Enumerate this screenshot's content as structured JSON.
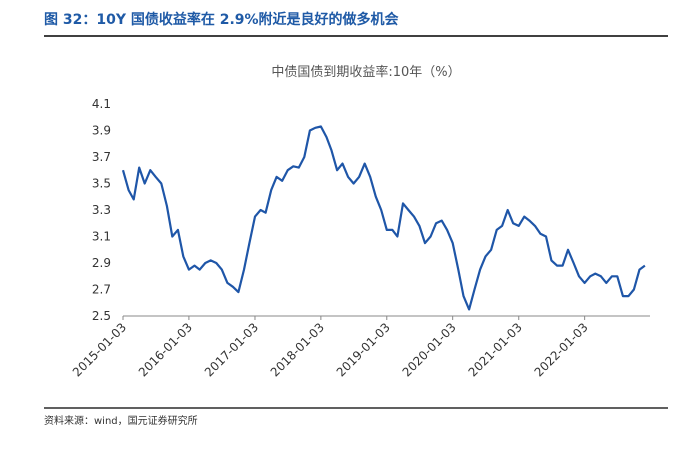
{
  "header": {
    "title": "图 32：10Y 国债收益率在 2.9%附近是良好的做多机会"
  },
  "chart_data": {
    "type": "line",
    "title": "中债国债到期收益率:10年（%）",
    "x": [
      "2015-01-03",
      "2015-02-03",
      "2015-03-03",
      "2015-04-03",
      "2015-05-03",
      "2015-06-03",
      "2015-07-03",
      "2015-08-03",
      "2015-09-03",
      "2015-10-03",
      "2015-11-03",
      "2015-12-03",
      "2016-01-03",
      "2016-02-03",
      "2016-03-03",
      "2016-04-03",
      "2016-05-03",
      "2016-06-03",
      "2016-07-03",
      "2016-08-03",
      "2016-09-03",
      "2016-10-03",
      "2016-11-03",
      "2016-12-03",
      "2017-01-03",
      "2017-02-03",
      "2017-03-03",
      "2017-04-03",
      "2017-05-03",
      "2017-06-03",
      "2017-07-03",
      "2017-08-03",
      "2017-09-03",
      "2017-10-03",
      "2017-11-03",
      "2017-12-03",
      "2018-01-03",
      "2018-02-03",
      "2018-03-03",
      "2018-04-03",
      "2018-05-03",
      "2018-06-03",
      "2018-07-03",
      "2018-08-03",
      "2018-09-03",
      "2018-10-03",
      "2018-11-03",
      "2018-12-03",
      "2019-01-03",
      "2019-02-03",
      "2019-03-03",
      "2019-04-03",
      "2019-05-03",
      "2019-06-03",
      "2019-07-03",
      "2019-08-03",
      "2019-09-03",
      "2019-10-03",
      "2019-11-03",
      "2019-12-03",
      "2020-01-03",
      "2020-02-03",
      "2020-03-03",
      "2020-04-03",
      "2020-05-03",
      "2020-06-03",
      "2020-07-03",
      "2020-08-03",
      "2020-09-03",
      "2020-10-03",
      "2020-11-03",
      "2020-12-03",
      "2021-01-03",
      "2021-02-03",
      "2021-03-03",
      "2021-04-03",
      "2021-05-03",
      "2021-06-03",
      "2021-07-03",
      "2021-08-03",
      "2021-09-03",
      "2021-10-03",
      "2021-11-03",
      "2021-12-03",
      "2022-01-03",
      "2022-02-03",
      "2022-03-03",
      "2022-04-03",
      "2022-05-03",
      "2022-06-03",
      "2022-07-03",
      "2022-08-03",
      "2022-09-03",
      "2022-10-03",
      "2022-11-03",
      "2022-12-03"
    ],
    "series": [
      {
        "name": "中债国债到期收益率:10年",
        "color": "#1f56a8",
        "values": [
          3.6,
          3.45,
          3.38,
          3.62,
          3.5,
          3.6,
          3.55,
          3.5,
          3.33,
          3.1,
          3.15,
          2.95,
          2.85,
          2.88,
          2.85,
          2.9,
          2.92,
          2.9,
          2.85,
          2.75,
          2.72,
          2.68,
          2.85,
          3.05,
          3.25,
          3.3,
          3.28,
          3.45,
          3.55,
          3.52,
          3.6,
          3.63,
          3.62,
          3.7,
          3.9,
          3.92,
          3.93,
          3.85,
          3.75,
          3.6,
          3.65,
          3.55,
          3.5,
          3.55,
          3.65,
          3.55,
          3.4,
          3.3,
          3.15,
          3.15,
          3.1,
          3.35,
          3.3,
          3.25,
          3.18,
          3.05,
          3.1,
          3.2,
          3.22,
          3.15,
          3.05,
          2.85,
          2.65,
          2.55,
          2.7,
          2.85,
          2.95,
          3.0,
          3.15,
          3.18,
          3.3,
          3.2,
          3.18,
          3.25,
          3.22,
          3.18,
          3.12,
          3.1,
          2.92,
          2.88,
          2.88,
          3.0,
          2.9,
          2.8,
          2.75,
          2.8,
          2.82,
          2.8,
          2.75,
          2.8,
          2.8,
          2.65,
          2.65,
          2.7,
          2.85,
          2.88
        ]
      }
    ],
    "xlim": [
      "2015-01-03",
      "2022-12-31"
    ],
    "xticks": [
      "2015-01-03",
      "2016-01-03",
      "2017-01-03",
      "2018-01-03",
      "2019-01-03",
      "2020-01-03",
      "2021-01-03",
      "2022-01-03"
    ],
    "ylim": [
      2.5,
      4.1
    ],
    "yticks": [
      2.5,
      2.7,
      2.9,
      3.1,
      3.3,
      3.5,
      3.7,
      3.9,
      4.1
    ],
    "grid": false
  },
  "footer": {
    "source": "资料来源：wind，国元证券研究所"
  }
}
